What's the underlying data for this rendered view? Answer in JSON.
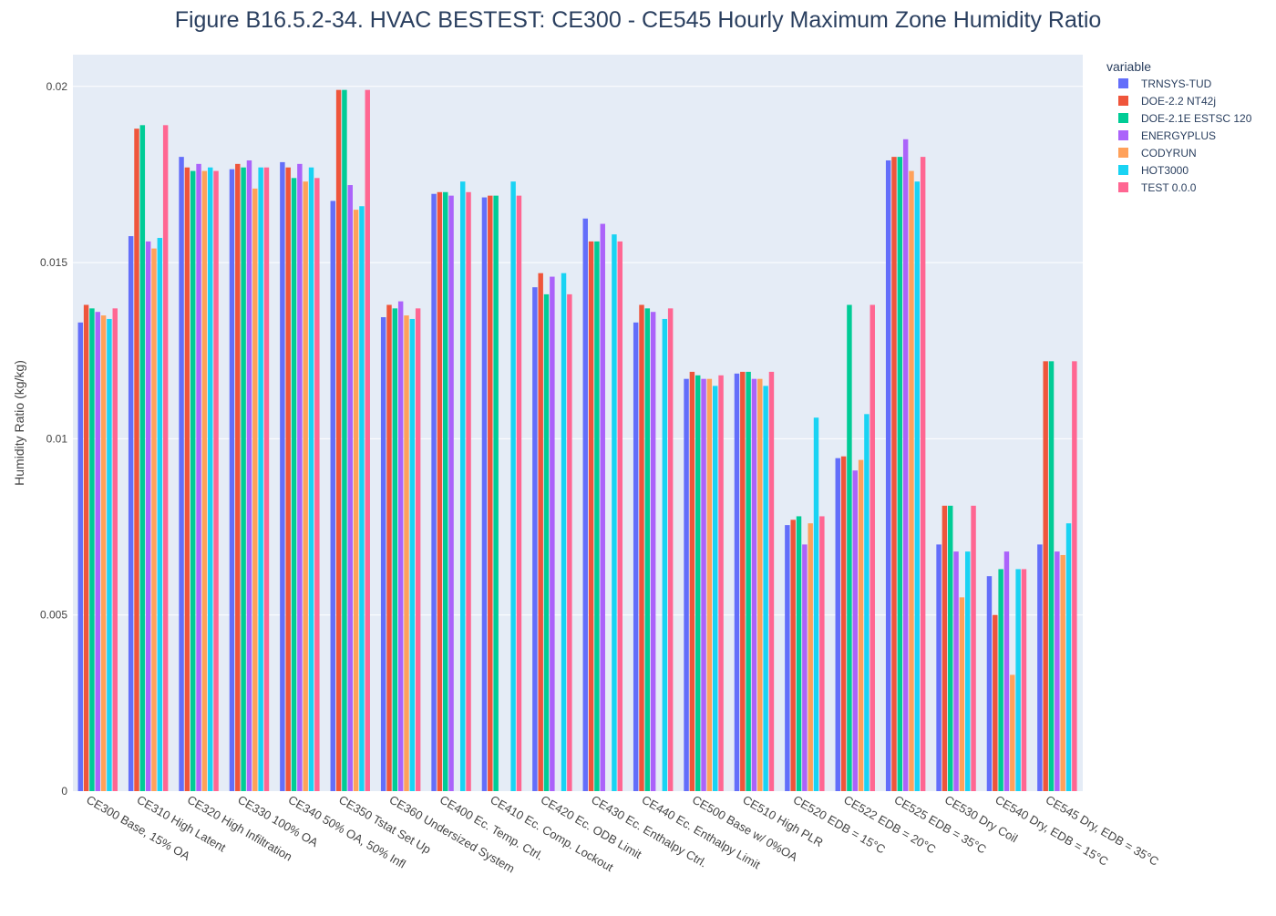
{
  "chart_data": {
    "type": "bar",
    "title": "Figure B16.5.2-34. HVAC BESTEST: CE300 - CE545 Hourly Maximum Zone Humidity Ratio",
    "ylabel": "Humidity Ratio (kg/kg)",
    "xlabel": "",
    "ylim": [
      0,
      0.0209
    ],
    "y_ticks": [
      0,
      0.005,
      0.01,
      0.015,
      0.02
    ],
    "y_tick_labels": [
      "0",
      "0.005",
      "0.01",
      "0.015",
      "0.02"
    ],
    "legend_title": "variable",
    "legend_position": "right",
    "grid": true,
    "plot_bg": "#e5ecf6",
    "categories": [
      "CE300 Base, 15% OA",
      "CE310 High Latent",
      "CE320 High Infiltration",
      "CE330 100% OA",
      "CE340 50% OA, 50% Infl",
      "CE350 Tstat Set Up",
      "CE360 Undersized System",
      "CE400 Ec. Temp. Ctrl.",
      "CE410 Ec. Comp. Lockout",
      "CE420 Ec. ODB Limit",
      "CE430 Ec. Enthalpy Ctrl.",
      "CE440 Ec. Enthalpy Limit",
      "CE500 Base w/ 0%OA",
      "CE510 High PLR",
      "CE520 EDB = 15°C",
      "CE522 EDB = 20°C",
      "CE525 EDB = 35°C",
      "CE530 Dry Coil",
      "CE540 Dry, EDB = 15°C",
      "CE545 Dry, EDB = 35°C"
    ],
    "series": [
      {
        "name": "TRNSYS-TUD",
        "color": "#636efa",
        "values": [
          0.0133,
          0.01575,
          0.018,
          0.01765,
          0.01785,
          0.01675,
          0.01345,
          0.01695,
          0.01685,
          0.0143,
          0.01625,
          0.0133,
          0.0117,
          0.01185,
          0.00755,
          0.00945,
          0.0179,
          0.007,
          0.0061,
          0.007
        ]
      },
      {
        "name": "DOE-2.2 NT42j",
        "color": "#EF553B",
        "values": [
          0.0138,
          0.0188,
          0.0177,
          0.0178,
          0.0177,
          0.0199,
          0.0138,
          0.017,
          0.0169,
          0.0147,
          0.0156,
          0.0138,
          0.0119,
          0.0119,
          0.0077,
          0.0095,
          0.018,
          0.0081,
          0.005,
          0.0122
        ]
      },
      {
        "name": "DOE-2.1E ESTSC 120",
        "color": "#00cc96",
        "values": [
          0.0137,
          0.0189,
          0.0176,
          0.0177,
          0.0174,
          0.0199,
          0.0137,
          0.017,
          0.0169,
          0.0141,
          0.0156,
          0.0137,
          0.0118,
          0.0119,
          0.0078,
          0.0138,
          0.018,
          0.0081,
          0.0063,
          0.0122
        ]
      },
      {
        "name": "ENERGYPLUS",
        "color": "#ab63fa",
        "values": [
          0.0136,
          0.0156,
          0.0178,
          0.0179,
          0.0178,
          0.0172,
          0.0139,
          0.0169,
          null,
          0.0146,
          0.0161,
          0.0136,
          0.0117,
          0.0117,
          0.007,
          0.0091,
          0.0185,
          0.0068,
          0.0068,
          0.0068
        ]
      },
      {
        "name": "CODYRUN",
        "color": "#FFA15A",
        "values": [
          0.0135,
          0.0154,
          0.0176,
          0.0171,
          0.0173,
          0.0165,
          0.0135,
          null,
          null,
          null,
          null,
          null,
          0.0117,
          0.0117,
          0.0076,
          0.0094,
          0.0176,
          0.0055,
          0.0033,
          0.0067
        ]
      },
      {
        "name": "HOT3000",
        "color": "#19d3f3",
        "values": [
          0.0134,
          0.0157,
          0.0177,
          0.0177,
          0.0177,
          0.0166,
          0.0134,
          0.0173,
          0.0173,
          0.0147,
          0.0158,
          0.0134,
          0.0115,
          0.0115,
          0.0106,
          0.0107,
          0.0173,
          0.0068,
          0.0063,
          0.0076
        ]
      },
      {
        "name": "TEST 0.0.0",
        "color": "#FF6692",
        "values": [
          0.0137,
          0.0189,
          0.0176,
          0.0177,
          0.0174,
          0.0199,
          0.0137,
          0.017,
          0.0169,
          0.0141,
          0.0156,
          0.0137,
          0.0118,
          0.0119,
          0.0078,
          0.0138,
          0.018,
          0.0081,
          0.0063,
          0.0122
        ]
      }
    ]
  }
}
